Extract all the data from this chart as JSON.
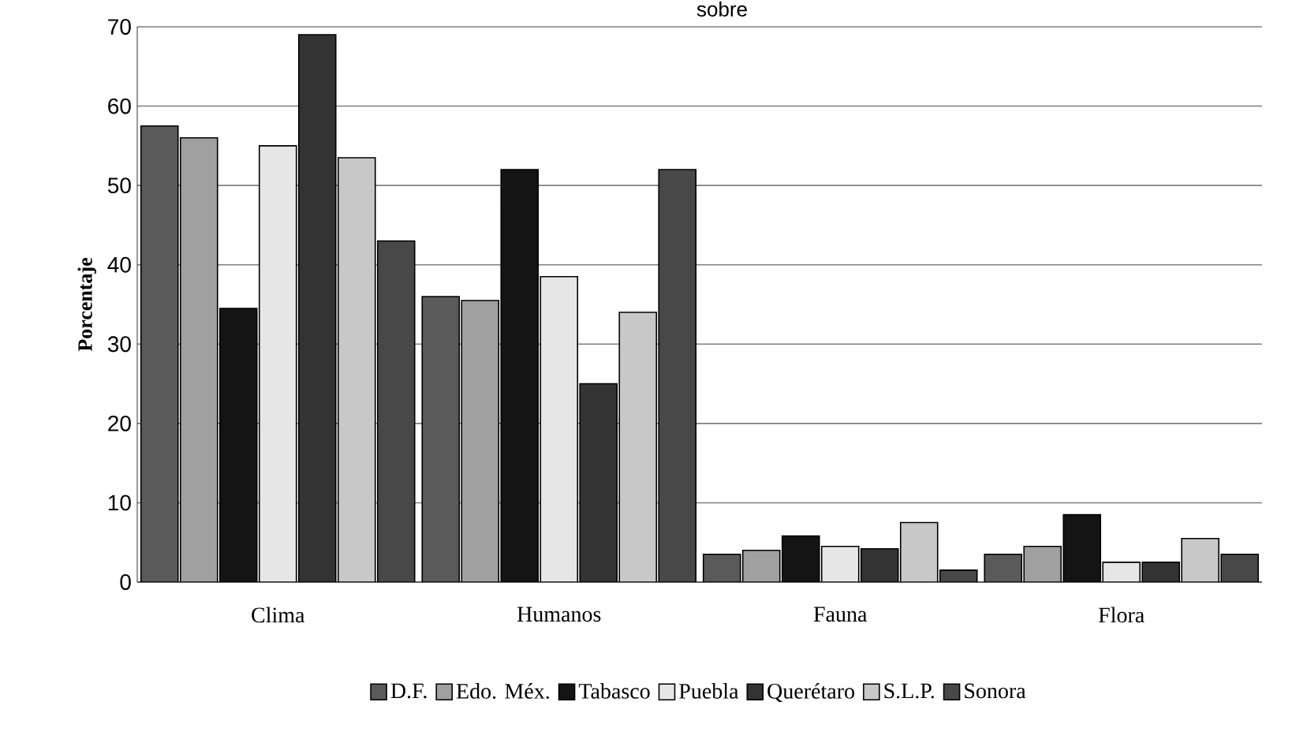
{
  "chart_data": {
    "type": "bar",
    "title": "sobre",
    "ylabel": "Porcentaje",
    "categories": [
      "Clima",
      "Humanos",
      "Fauna",
      "Flora"
    ],
    "series": [
      {
        "name": "D.F.",
        "color": "#5a5a5a",
        "values": [
          57.5,
          36,
          3.5,
          3.5
        ]
      },
      {
        "name": "Edo. Méx.",
        "color": "#a0a0a0",
        "values": [
          56,
          35.5,
          4,
          4.5
        ]
      },
      {
        "name": "Tabasco",
        "color": "#141414",
        "values": [
          34.5,
          52,
          5.8,
          8.5
        ]
      },
      {
        "name": "Puebla",
        "color": "#e6e6e6",
        "values": [
          55,
          38.5,
          4.5,
          2.5
        ]
      },
      {
        "name": "Querétaro",
        "color": "#333333",
        "values": [
          69,
          25,
          4.2,
          2.5
        ]
      },
      {
        "name": "S.L.P.",
        "color": "#c8c8c8",
        "values": [
          53.5,
          34,
          7.5,
          5.5
        ]
      },
      {
        "name": "Sonora",
        "color": "#484848",
        "values": [
          43,
          52,
          1.5,
          3.5
        ]
      }
    ],
    "ylim": [
      0,
      70
    ],
    "yticks": [
      0,
      10,
      20,
      30,
      40,
      50,
      60,
      70
    ],
    "grid": "y",
    "legend": "bottom"
  }
}
